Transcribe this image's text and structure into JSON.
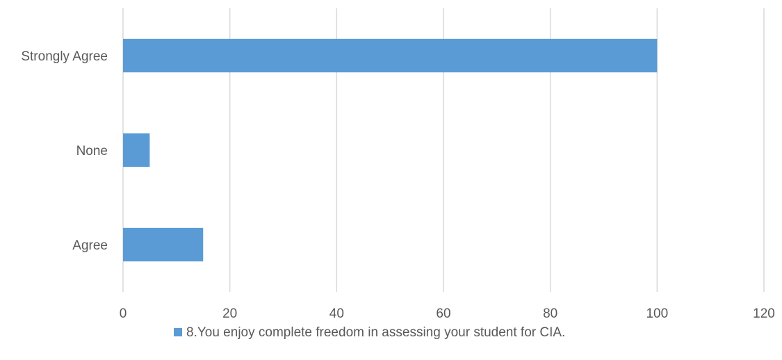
{
  "chart_data": {
    "type": "bar",
    "orientation": "horizontal",
    "categories": [
      "Strongly Agree",
      "None",
      "Agree"
    ],
    "series": [
      {
        "name": "8.You enjoy complete freedom in assessing your student for CIA.",
        "values": [
          100,
          5,
          15
        ],
        "color": "#5b9bd5"
      }
    ],
    "x_ticks": [
      "0",
      "20",
      "40",
      "60",
      "80",
      "100",
      "120"
    ],
    "xlim": [
      0,
      120
    ],
    "grid": true,
    "legend_position": "bottom"
  }
}
